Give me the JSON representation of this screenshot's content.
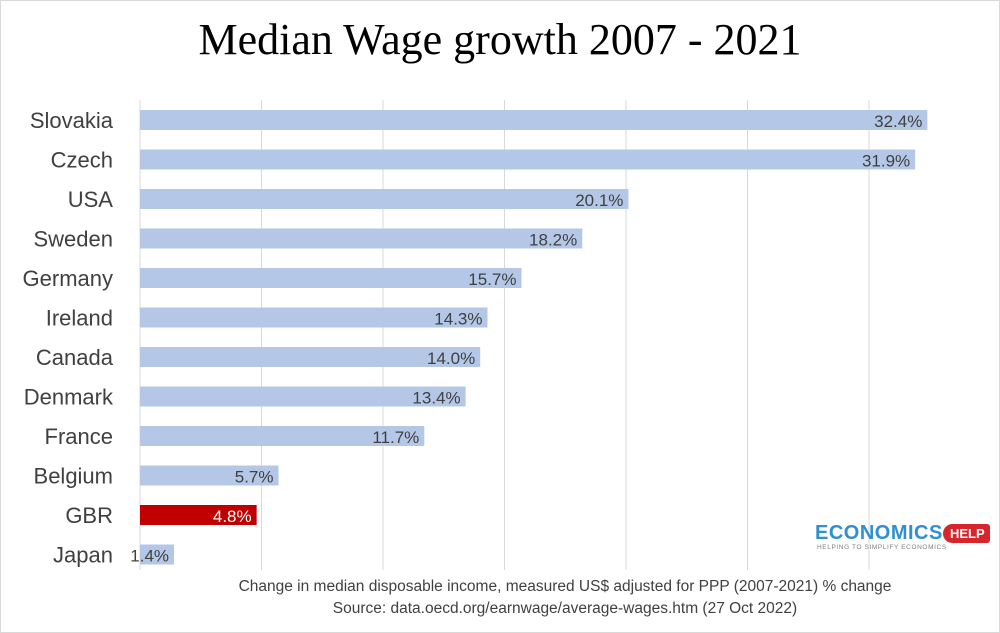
{
  "chart_data": {
    "type": "bar",
    "orientation": "horizontal",
    "title": "Median Wage growth 2007 - 2021",
    "categories": [
      "Slovakia",
      "Czech",
      "USA",
      "Sweden",
      "Germany",
      "Ireland",
      "Canada",
      "Denmark",
      "France",
      "Belgium",
      "GBR",
      "Japan"
    ],
    "values": [
      32.4,
      31.9,
      20.1,
      18.2,
      15.7,
      14.3,
      14.0,
      13.4,
      11.7,
      5.7,
      4.8,
      1.4
    ],
    "data_labels": [
      "32.4%",
      "31.9%",
      "20.1%",
      "18.2%",
      "15.7%",
      "14.3%",
      "14.0%",
      "13.4%",
      "11.7%",
      "5.7%",
      "4.8%",
      "1.4%"
    ],
    "highlight_category": "GBR",
    "xlim": [
      0,
      35
    ],
    "grid": true,
    "colors": {
      "bar": "#b4c7e7",
      "highlight": "#c00000",
      "label": "#404040",
      "highlight_label": "#ffffff",
      "grid": "#d9d9d9"
    },
    "footnote_lines": [
      "Change in median disposable income, measured US$ adjusted for PPP (2007-2021) % change",
      "Source: data.oecd.org/earnwage/average-wages.htm (27 Oct 2022)"
    ]
  },
  "logo": {
    "word": "ECONOMICS",
    "badge": "HELP",
    "tagline": "HELPING TO SIMPLIFY ECONOMICS"
  }
}
